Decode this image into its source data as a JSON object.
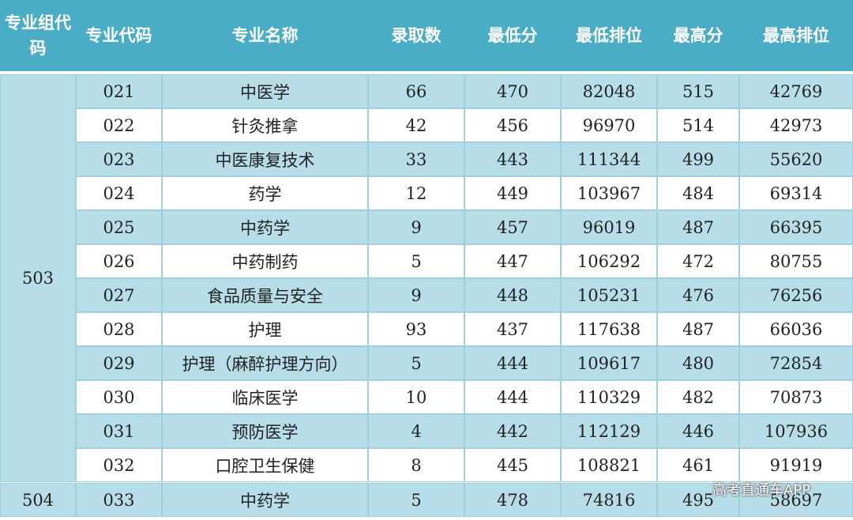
{
  "header": {
    "columns": [
      "专业组代码",
      "专业代码",
      "专业名称",
      "录取数",
      "最低分",
      "最低排位",
      "最高分",
      "最高排位"
    ]
  },
  "groups": [
    {
      "label": "503",
      "rows": [
        [
          "021",
          "中医学",
          "66",
          "470",
          "82048",
          "515",
          "42769"
        ],
        [
          "022",
          "针灸推拿",
          "42",
          "456",
          "96970",
          "514",
          "42973"
        ],
        [
          "023",
          "中医康复技术",
          "33",
          "443",
          "111344",
          "499",
          "55620"
        ],
        [
          "024",
          "药学",
          "12",
          "449",
          "103967",
          "484",
          "69314"
        ],
        [
          "025",
          "中药学",
          "9",
          "457",
          "96019",
          "487",
          "66395"
        ],
        [
          "026",
          "中药制药",
          "5",
          "447",
          "106292",
          "472",
          "80755"
        ],
        [
          "027",
          "食品质量与安全",
          "9",
          "448",
          "105231",
          "476",
          "76256"
        ],
        [
          "028",
          "护理",
          "93",
          "437",
          "117638",
          "487",
          "66036"
        ],
        [
          "029",
          "护理（麻醉护理方向）",
          "5",
          "444",
          "109617",
          "480",
          "72854"
        ],
        [
          "030",
          "临床医学",
          "10",
          "444",
          "110329",
          "482",
          "70873"
        ],
        [
          "031",
          "预防医学",
          "4",
          "442",
          "112129",
          "446",
          "107936"
        ],
        [
          "032",
          "口腔卫生保健",
          "8",
          "445",
          "108821",
          "461",
          "91919"
        ]
      ]
    },
    {
      "label": "504",
      "rows": [
        [
          "033",
          "中药学",
          "5",
          "478",
          "74816",
          "495",
          "58697"
        ]
      ]
    }
  ],
  "watermark": "高考直通车APP"
}
